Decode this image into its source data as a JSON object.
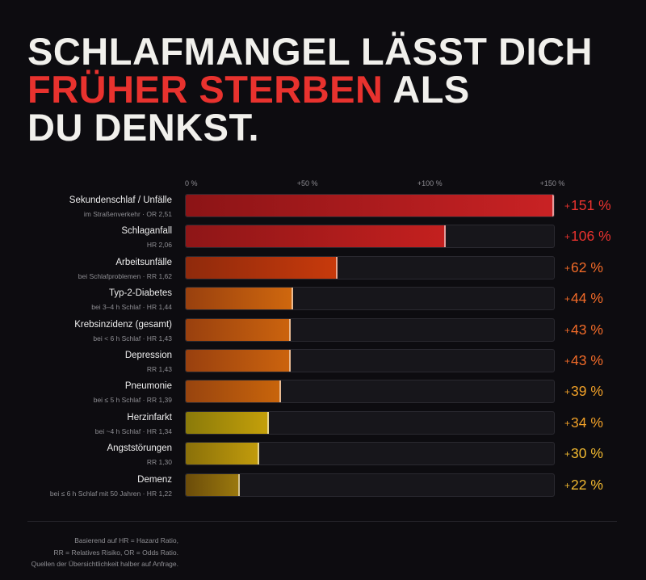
{
  "headline": {
    "line1": "SCHLAFMANGEL LÄSST DICH",
    "line2_accent": "FRÜHER STERBEN",
    "line2_rest": " ALS",
    "line3": "DU DENKST."
  },
  "colors": {
    "background": "#0d0c10",
    "accent_red": "#e8322e",
    "text": "#f1f0ec"
  },
  "chart_data": {
    "type": "bar",
    "orientation": "horizontal",
    "xlim": [
      0,
      151
    ],
    "x_ticks": [
      "0 %",
      "+50 %",
      "+100 %",
      "+150 %"
    ],
    "x_tick_values": [
      0,
      50,
      100,
      150
    ],
    "categories": [
      "Sekundenschlaf / Unfälle",
      "Schlaganfall",
      "Arbeitsunfälle",
      "Typ-2-Diabetes",
      "Krebsinzidenz (gesamt)",
      "Depression",
      "Pneumonie",
      "Herzinfarkt",
      "Angststörungen",
      "Demenz"
    ],
    "subtitles": [
      "im Straßenverkehr · OR 2,51",
      "HR 2,06",
      "bei Schlafproblemen · RR 1,62",
      "bei 3–4 h Schlaf · HR 1,44",
      "bei < 6 h Schlaf · HR 1,43",
      "RR 1,43",
      "bei ≤ 5 h Schlaf · RR 1,39",
      "bei ~4 h Schlaf · HR 1,34",
      "RR 1,30",
      "bei ≤ 6 h Schlaf mit 50 Jahren · HR 1,22"
    ],
    "values": [
      151,
      106,
      62,
      44,
      43,
      43,
      39,
      34,
      30,
      22
    ],
    "value_labels": [
      "151 %",
      "106 %",
      "62 %",
      "44 %",
      "43 %",
      "43 %",
      "39 %",
      "34 %",
      "30 %",
      "22 %"
    ],
    "bar_colors": [
      [
        "#8c1416",
        "#c92224"
      ],
      [
        "#8e1617",
        "#c4201f"
      ],
      [
        "#8f2a0c",
        "#c83a0c"
      ],
      [
        "#99400e",
        "#d0680e"
      ],
      [
        "#99400e",
        "#cc640e"
      ],
      [
        "#99400e",
        "#cc640e"
      ],
      [
        "#98440e",
        "#c9650c"
      ],
      [
        "#8a7a0a",
        "#c5a00a"
      ],
      [
        "#8a700a",
        "#c29c0c"
      ],
      [
        "#6b4c0a",
        "#9c7a0e"
      ]
    ],
    "value_colors": [
      "#e8322e",
      "#e8322e",
      "#f06a28",
      "#f06a28",
      "#f06a28",
      "#f06a28",
      "#f0a028",
      "#f0a028",
      "#f0b830",
      "#f0b830"
    ]
  },
  "footnote": [
    "Basierend auf HR = Hazard Ratio,",
    "RR = Relatives Risiko, OR = Odds Ratio.",
    "Quellen der Übersichtlichkeit halber auf Anfrage."
  ]
}
